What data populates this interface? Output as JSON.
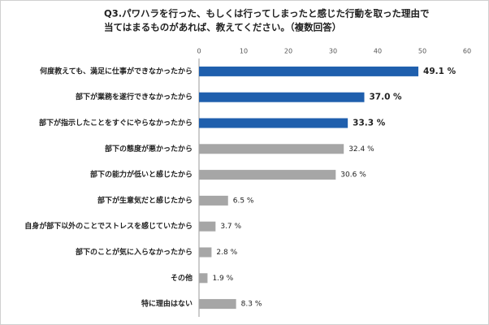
{
  "chart_data": {
    "type": "bar",
    "orientation": "horizontal",
    "title": [
      "Q3.パワハラを行った、もしくは行ってしまったと感じた行動を取った理由で",
      "当てはまるものがあれば、教えてください。（複数回答）"
    ],
    "categories": [
      "何度教えても、満足に仕事ができなかったから",
      "部下が業務を遂行できなかったから",
      "部下が指示したことをすぐにやらなかったから",
      "部下の態度が悪かったから",
      "部下の能力が低いと感じたから",
      "部下が生意気だと感じたから",
      "自身が部下以外のことでストレスを感じていたから",
      "部下のことが気に入らなかったから",
      "その他",
      "特に理由はない"
    ],
    "values": [
      49.1,
      37.0,
      33.3,
      32.4,
      30.6,
      6.5,
      3.7,
      2.8,
      1.9,
      8.3
    ],
    "value_labels": [
      "49.1 %",
      "37.0 %",
      "33.3 %",
      "32.4 %",
      "30.6 %",
      "6.5 %",
      "3.7 %",
      "2.8 %",
      "1.9 %",
      "8.3 %"
    ],
    "colors": [
      "#1f5fad",
      "#1f5fad",
      "#1f5fad",
      "#a6a6a6",
      "#a6a6a6",
      "#a6a6a6",
      "#a6a6a6",
      "#a6a6a6",
      "#a6a6a6",
      "#a6a6a6"
    ],
    "highlight_color": "#1f5fad",
    "xlim": [
      0,
      60
    ],
    "xticks": [
      0,
      10,
      20,
      30,
      40,
      50,
      60
    ]
  }
}
